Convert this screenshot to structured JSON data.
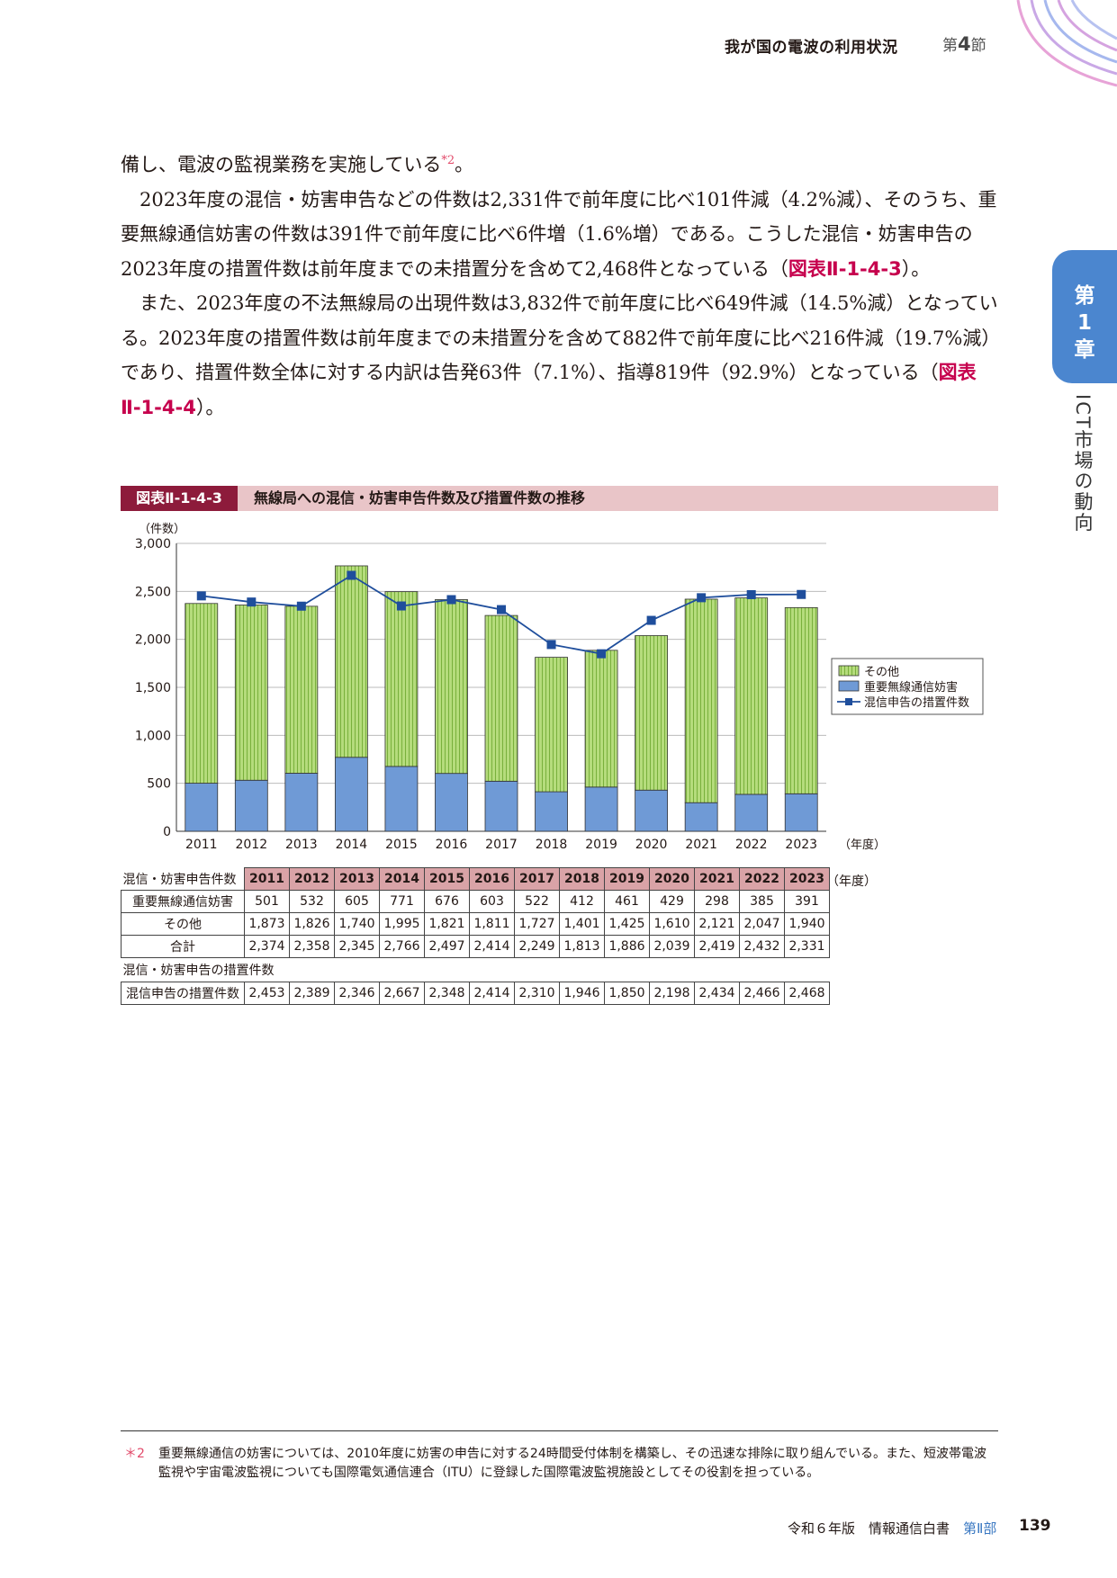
{
  "header": {
    "title": "我が国の電波の利用状況",
    "section_prefix": "第",
    "section_number": "4",
    "section_suffix": "節"
  },
  "chapter_tab": {
    "line1": "第",
    "line2": "1",
    "line3": "章"
  },
  "side_label": "ICT市場の動向",
  "body": {
    "p1": "備し、電波の監視業務を実施している",
    "p1_note": "*2",
    "p1_end": "。",
    "p2": "2023年度の混信・妨害申告などの件数は2,331件で前年度に比べ101件減（4.2%減）、そのうち、重要無線通信妨害の件数は391件で前年度に比べ6件増（1.6%増）である。こうした混信・妨害申告の2023年度の措置件数は前年度までの未措置分を含めて2,468件となっている（",
    "p2_ref": "図表Ⅱ-1-4-3",
    "p2_end": "）。",
    "p3": "また、2023年度の不法無線局の出現件数は3,832件で前年度に比べ649件減（14.5%減）となっている。2023年度の措置件数は前年度までの未措置分を含めて882件で前年度に比べ216件減（19.7%減）であり、措置件数全体に対する内訳は告発63件（7.1%）、指導819件（92.9%）となっている（",
    "p3_ref": "図表Ⅱ-1-4-4",
    "p3_end": "）。"
  },
  "figure": {
    "label": "図表Ⅱ-1-4-3",
    "title": "無線局への混信・妨害申告件数及び措置件数の推移"
  },
  "chart_data": {
    "type": "bar",
    "stacked": true,
    "categories": [
      "2011",
      "2012",
      "2013",
      "2014",
      "2015",
      "2016",
      "2017",
      "2018",
      "2019",
      "2020",
      "2021",
      "2022",
      "2023"
    ],
    "series": [
      {
        "name": "重要無線通信妨害",
        "type": "bar",
        "color": "#6f9ad6",
        "values": [
          501,
          532,
          605,
          771,
          676,
          603,
          522,
          412,
          461,
          429,
          298,
          385,
          391
        ]
      },
      {
        "name": "その他",
        "type": "bar",
        "color": "#b5dc7c",
        "values": [
          1873,
          1826,
          1740,
          1995,
          1821,
          1811,
          1727,
          1401,
          1425,
          1610,
          2121,
          2047,
          1940
        ]
      },
      {
        "name": "混信申告の措置件数",
        "type": "line",
        "color": "#1f4e9c",
        "values": [
          2453,
          2389,
          2346,
          2667,
          2348,
          2414,
          2310,
          1946,
          1850,
          2198,
          2434,
          2466,
          2468
        ]
      }
    ],
    "legend_order": [
      "その他",
      "重要無線通信妨害",
      "混信申告の措置件数"
    ],
    "ylabel": "（件数）",
    "xlabel": "（年度）",
    "ylim": [
      0,
      3000
    ],
    "yticks": [
      "0",
      "500",
      "1,000",
      "1,500",
      "2,000",
      "2,500",
      "3,000"
    ],
    "grid": true,
    "legend_position": "right"
  },
  "table": {
    "header_label": "混信・妨害申告件数",
    "year_unit": "（年度）",
    "years": [
      "2011",
      "2012",
      "2013",
      "2014",
      "2015",
      "2016",
      "2017",
      "2018",
      "2019",
      "2020",
      "2021",
      "2022",
      "2023"
    ],
    "rows": [
      {
        "label": "重要無線通信妨害",
        "values": [
          "501",
          "532",
          "605",
          "771",
          "676",
          "603",
          "522",
          "412",
          "461",
          "429",
          "298",
          "385",
          "391"
        ]
      },
      {
        "label": "その他",
        "values": [
          "1,873",
          "1,826",
          "1,740",
          "1,995",
          "1,821",
          "1,811",
          "1,727",
          "1,401",
          "1,425",
          "1,610",
          "2,121",
          "2,047",
          "1,940"
        ]
      },
      {
        "label": "合計",
        "values": [
          "2,374",
          "2,358",
          "2,345",
          "2,766",
          "2,497",
          "2,414",
          "2,249",
          "1,813",
          "1,886",
          "2,039",
          "2,419",
          "2,432",
          "2,331"
        ]
      }
    ],
    "sub_header": "混信・妨害申告の措置件数",
    "measure_row": {
      "label": "混信申告の措置件数",
      "values": [
        "2,453",
        "2,389",
        "2,346",
        "2,667",
        "2,348",
        "2,414",
        "2,310",
        "1,946",
        "1,850",
        "2,198",
        "2,434",
        "2,466",
        "2,468"
      ]
    }
  },
  "footnote": {
    "mark": "＊2",
    "text": "重要無線通信の妨害については、2010年度に妨害の申告に対する24時間受付体制を構築し、その迅速な排除に取り組んでいる。また、短波帯電波監視や宇宙電波監視についても国際電気通信連合（ITU）に登録した国際電波監視施設としてその役割を担っている。"
  },
  "page_footer": {
    "edition": "令和６年版　情報通信白書",
    "part": "第Ⅱ部",
    "page": "139"
  }
}
